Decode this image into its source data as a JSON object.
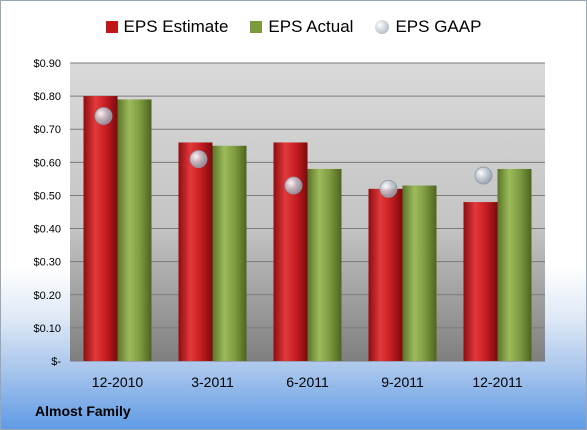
{
  "company": "Almost Family",
  "colors": {
    "estimate": "#c0171b",
    "actual": "#7c9a3c",
    "gaap": "#b8c0ca"
  },
  "chart_data": {
    "type": "bar",
    "title": "",
    "xlabel": "",
    "ylabel": "",
    "ylim": [
      0,
      0.9
    ],
    "yticks": [
      0,
      0.1,
      0.2,
      0.3,
      0.4,
      0.5,
      0.6,
      0.7,
      0.8,
      0.9
    ],
    "ytick_labels": [
      "$-",
      "$0.10",
      "$0.20",
      "$0.30",
      "$0.40",
      "$0.50",
      "$0.60",
      "$0.70",
      "$0.80",
      "$0.90"
    ],
    "grid": true,
    "legend_position": "top",
    "categories": [
      "12-2010",
      "3-2011",
      "6-2011",
      "9-2011",
      "12-2011"
    ],
    "series": [
      {
        "name": "EPS Estimate",
        "kind": "bar",
        "values": [
          0.8,
          0.66,
          0.66,
          0.52,
          0.48
        ]
      },
      {
        "name": "EPS Actual",
        "kind": "bar",
        "values": [
          0.79,
          0.65,
          0.58,
          0.53,
          0.58
        ]
      },
      {
        "name": "EPS GAAP",
        "kind": "marker",
        "values": [
          0.74,
          0.61,
          0.53,
          0.52,
          0.56
        ]
      }
    ]
  }
}
